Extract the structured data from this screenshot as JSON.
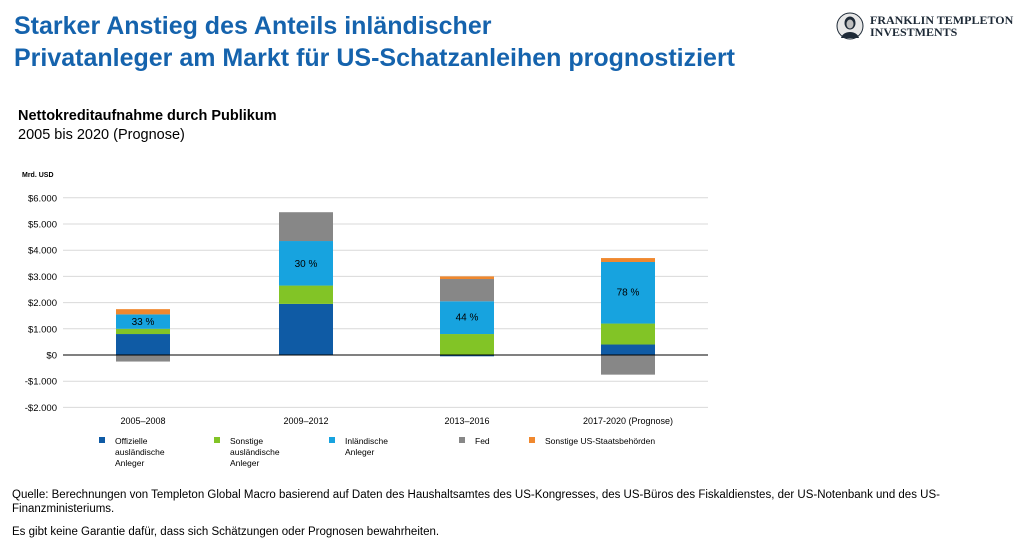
{
  "header": {
    "title_line1": "Starker Anstieg des Anteils inländischer",
    "title_line2": "Privatanleger am Markt für US-Schatzanleihen prognostiziert",
    "logo_line1": "FRANKLIN TEMPLETON",
    "logo_line2": "INVESTMENTS"
  },
  "colors": {
    "title": "#1563ad",
    "offizielle": "#0f5ba5",
    "sonstige_ausl": "#82c426",
    "inlaendische": "#17a3df",
    "fed": "#878787",
    "sonstige_us": "#f0882e"
  },
  "chart_data": {
    "type": "bar",
    "stacked": true,
    "title": "Nettokreditaufnahme durch Publikum",
    "subtitle": "2005 bis 2020 (Prognose)",
    "unit_label": "Mrd. USD",
    "ylim": [
      -2000,
      6000
    ],
    "yticks": [
      6000,
      5000,
      4000,
      3000,
      2000,
      1000,
      0,
      -1000,
      -2000
    ],
    "ytick_labels": [
      "$6.000",
      "$5.000",
      "$4.000",
      "$3.000",
      "$2.000",
      "$1.000",
      "$0",
      "-$1.000",
      "-$2.000"
    ],
    "grid": true,
    "legend_position": "bottom",
    "categories": [
      "2005–2008",
      "2009–2012",
      "2013–2016",
      "2017-2020  (Prognose)"
    ],
    "series": [
      {
        "name": "Offizielle ausländische Anleger",
        "legend_lines": [
          "Offizielle",
          "ausländische",
          "Anleger"
        ],
        "color": "#0f5ba5",
        "values": [
          800,
          1950,
          -50,
          400
        ]
      },
      {
        "name": "Sonstige ausländische Anleger",
        "legend_lines": [
          "Sonstige",
          "ausländische",
          "Anleger"
        ],
        "color": "#82c426",
        "values": [
          200,
          700,
          800,
          800
        ]
      },
      {
        "name": "Inländische Anleger",
        "legend_lines": [
          "Inländische",
          "Anleger"
        ],
        "color": "#17a3df",
        "values": [
          550,
          1700,
          1250,
          2350
        ]
      },
      {
        "name": "Fed",
        "legend_lines": [
          "Fed"
        ],
        "color": "#878787",
        "values": [
          -250,
          1100,
          850,
          -750
        ]
      },
      {
        "name": "Sonstige US-Staatsbehörden",
        "legend_lines": [
          "Sonstige US-Staatsbehörden"
        ],
        "color": "#f0882e",
        "values": [
          200,
          0,
          100,
          150
        ]
      }
    ],
    "annotations": [
      "33 %",
      "30 %",
      "44 %",
      "78 %"
    ]
  },
  "footer": {
    "source_line1": "Quelle: Berechnungen von  Templeton Global Macro basierend auf Daten des Haushaltsamtes des US-Kongresses, des US-Büros des Fiskaldienstes, der US-Notenbank und des US-",
    "source_line2": "Finanzministeriums.",
    "disclaimer": "Es gibt keine Garantie dafür, dass sich Schätzungen oder Prognosen bewahrheiten."
  }
}
